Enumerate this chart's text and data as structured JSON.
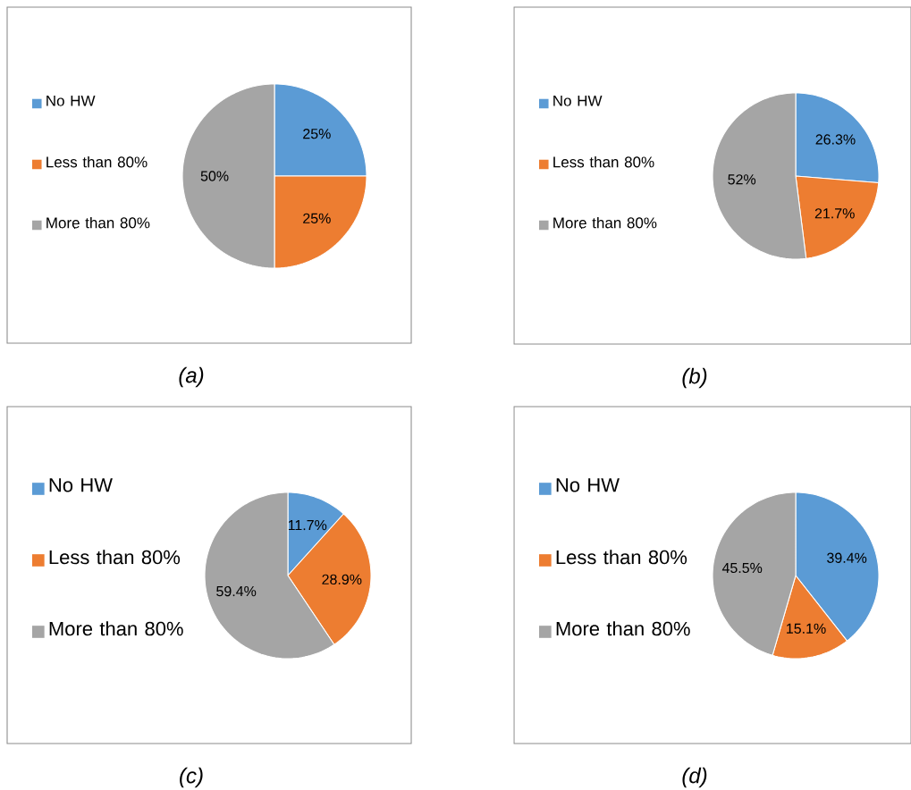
{
  "chart_data": [
    {
      "type": "pie",
      "title": "(a)",
      "categories": [
        "No HW",
        "Less than 80%",
        "More than 80%"
      ],
      "values": [
        25,
        25,
        50
      ],
      "colors": [
        "#5b9bd5",
        "#ed7d31",
        "#a5a5a5"
      ],
      "value_labels": [
        "25%",
        "25%",
        "50%"
      ],
      "legend": "left"
    },
    {
      "type": "pie",
      "title": "(b)",
      "categories": [
        "No HW",
        "Less than 80%",
        "More than 80%"
      ],
      "values": [
        26.3,
        21.7,
        52
      ],
      "colors": [
        "#5b9bd5",
        "#ed7d31",
        "#a5a5a5"
      ],
      "value_labels": [
        "26.3%",
        "21.7%",
        "52%"
      ],
      "legend": "left"
    },
    {
      "type": "pie",
      "title": "(c)",
      "categories": [
        "No HW",
        "Less than 80%",
        "More than 80%"
      ],
      "values": [
        11.7,
        28.9,
        59.4
      ],
      "colors": [
        "#5b9bd5",
        "#ed7d31",
        "#a5a5a5"
      ],
      "value_labels": [
        "11.7%",
        "28.9%",
        "59.4%"
      ],
      "legend": "left"
    },
    {
      "type": "pie",
      "title": "(d)",
      "categories": [
        "No HW",
        "Less than 80%",
        "More than 80%"
      ],
      "values": [
        39.4,
        15.1,
        45.5
      ],
      "colors": [
        "#5b9bd5",
        "#ed7d31",
        "#a5a5a5"
      ],
      "value_labels": [
        "39.4%",
        "15.1%",
        "45.5%"
      ],
      "legend": "left"
    }
  ]
}
